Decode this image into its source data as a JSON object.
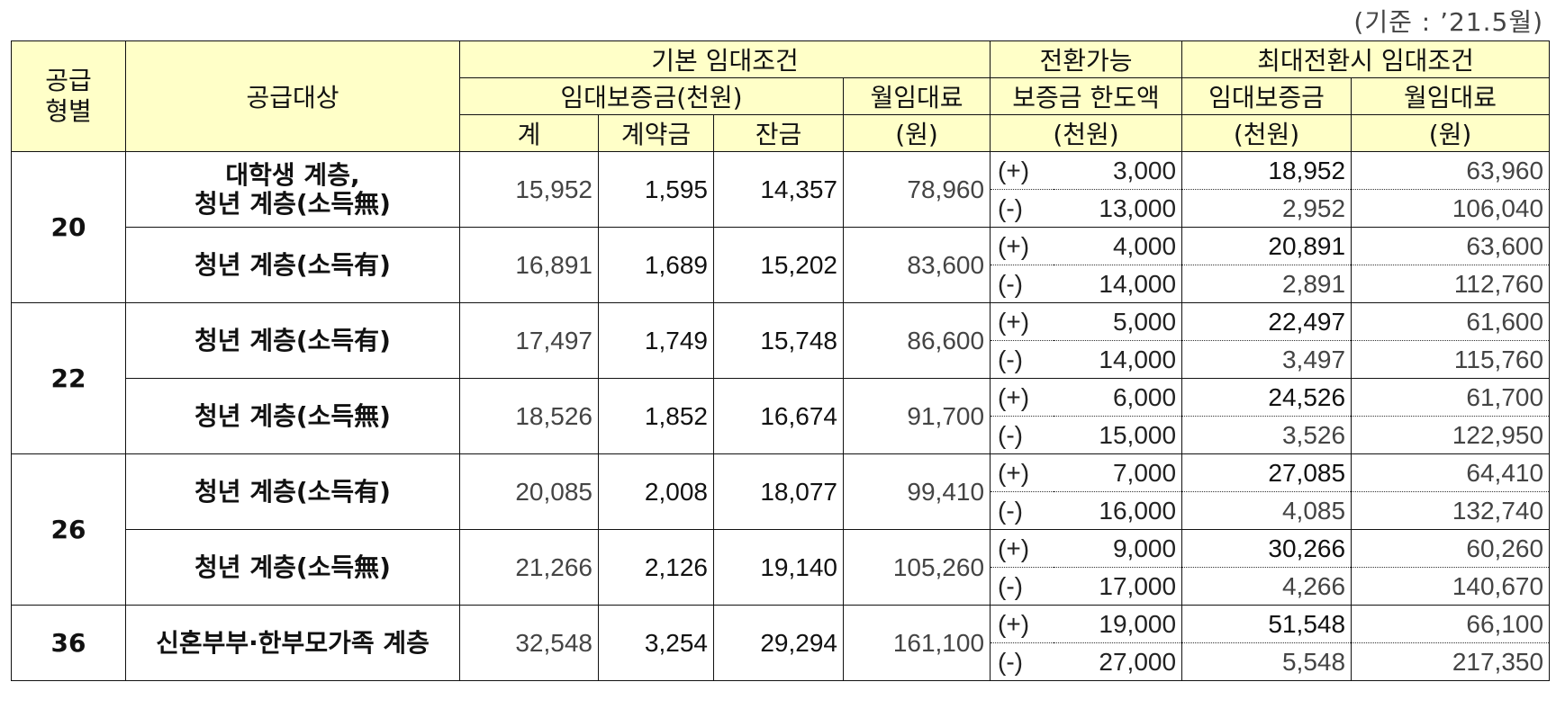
{
  "note": "(기준 : ’21.5월)",
  "headers": {
    "supply_type": "공급\n형별",
    "supply_target": "공급대상",
    "basic_terms": "기본 임대조건",
    "deposit_thousand": "임대보증금(천원)",
    "total": "계",
    "down_payment": "계약금",
    "balance": "잔금",
    "monthly_rent_1": "월임대료",
    "monthly_rent_2": "(원)",
    "convertible_1": "전환가능",
    "convertible_2": "보증금 한도액",
    "convertible_3": "(천원)",
    "max_conversion": "최대전환시 임대조건",
    "max_deposit_1": "임대보증금",
    "max_deposit_2": "(천원)",
    "max_rent_1": "월임대료",
    "max_rent_2": "(원)"
  },
  "groups": [
    {
      "type": "20",
      "rows": [
        {
          "target": "대학생 계층,\n청년 계층(소득無)",
          "total": "15,952",
          "down": "1,595",
          "balance": "14,357",
          "rent": "78,960",
          "plus": {
            "sign": "(+)",
            "limit": "3,000",
            "deposit": "18,952",
            "rent": "63,960"
          },
          "minus": {
            "sign": "(-)",
            "limit": "13,000",
            "deposit": "2,952",
            "rent": "106,040"
          }
        },
        {
          "target": "청년 계층(소득有)",
          "total": "16,891",
          "down": "1,689",
          "balance": "15,202",
          "rent": "83,600",
          "plus": {
            "sign": "(+)",
            "limit": "4,000",
            "deposit": "20,891",
            "rent": "63,600"
          },
          "minus": {
            "sign": "(-)",
            "limit": "14,000",
            "deposit": "2,891",
            "rent": "112,760"
          }
        }
      ]
    },
    {
      "type": "22",
      "rows": [
        {
          "target": "청년 계층(소득有)",
          "total": "17,497",
          "down": "1,749",
          "balance": "15,748",
          "rent": "86,600",
          "plus": {
            "sign": "(+)",
            "limit": "5,000",
            "deposit": "22,497",
            "rent": "61,600"
          },
          "minus": {
            "sign": "(-)",
            "limit": "14,000",
            "deposit": "3,497",
            "rent": "115,760"
          }
        },
        {
          "target": "청년 계층(소득無)",
          "total": "18,526",
          "down": "1,852",
          "balance": "16,674",
          "rent": "91,700",
          "plus": {
            "sign": "(+)",
            "limit": "6,000",
            "deposit": "24,526",
            "rent": "61,700"
          },
          "minus": {
            "sign": "(-)",
            "limit": "15,000",
            "deposit": "3,526",
            "rent": "122,950"
          }
        }
      ]
    },
    {
      "type": "26",
      "rows": [
        {
          "target": "청년 계층(소득有)",
          "total": "20,085",
          "down": "2,008",
          "balance": "18,077",
          "rent": "99,410",
          "plus": {
            "sign": "(+)",
            "limit": "7,000",
            "deposit": "27,085",
            "rent": "64,410"
          },
          "minus": {
            "sign": "(-)",
            "limit": "16,000",
            "deposit": "4,085",
            "rent": "132,740"
          }
        },
        {
          "target": "청년 계층(소득無)",
          "total": "21,266",
          "down": "2,126",
          "balance": "19,140",
          "rent": "105,260",
          "plus": {
            "sign": "(+)",
            "limit": "9,000",
            "deposit": "30,266",
            "rent": "60,260"
          },
          "minus": {
            "sign": "(-)",
            "limit": "17,000",
            "deposit": "4,266",
            "rent": "140,670"
          }
        }
      ]
    },
    {
      "type": "36",
      "rows": [
        {
          "target": "신혼부부·한부모가족 계층",
          "total": "32,548",
          "down": "3,254",
          "balance": "29,294",
          "rent": "161,100",
          "plus": {
            "sign": "(+)",
            "limit": "19,000",
            "deposit": "51,548",
            "rent": "66,100"
          },
          "minus": {
            "sign": "(-)",
            "limit": "27,000",
            "deposit": "5,548",
            "rent": "217,350"
          }
        }
      ]
    }
  ]
}
